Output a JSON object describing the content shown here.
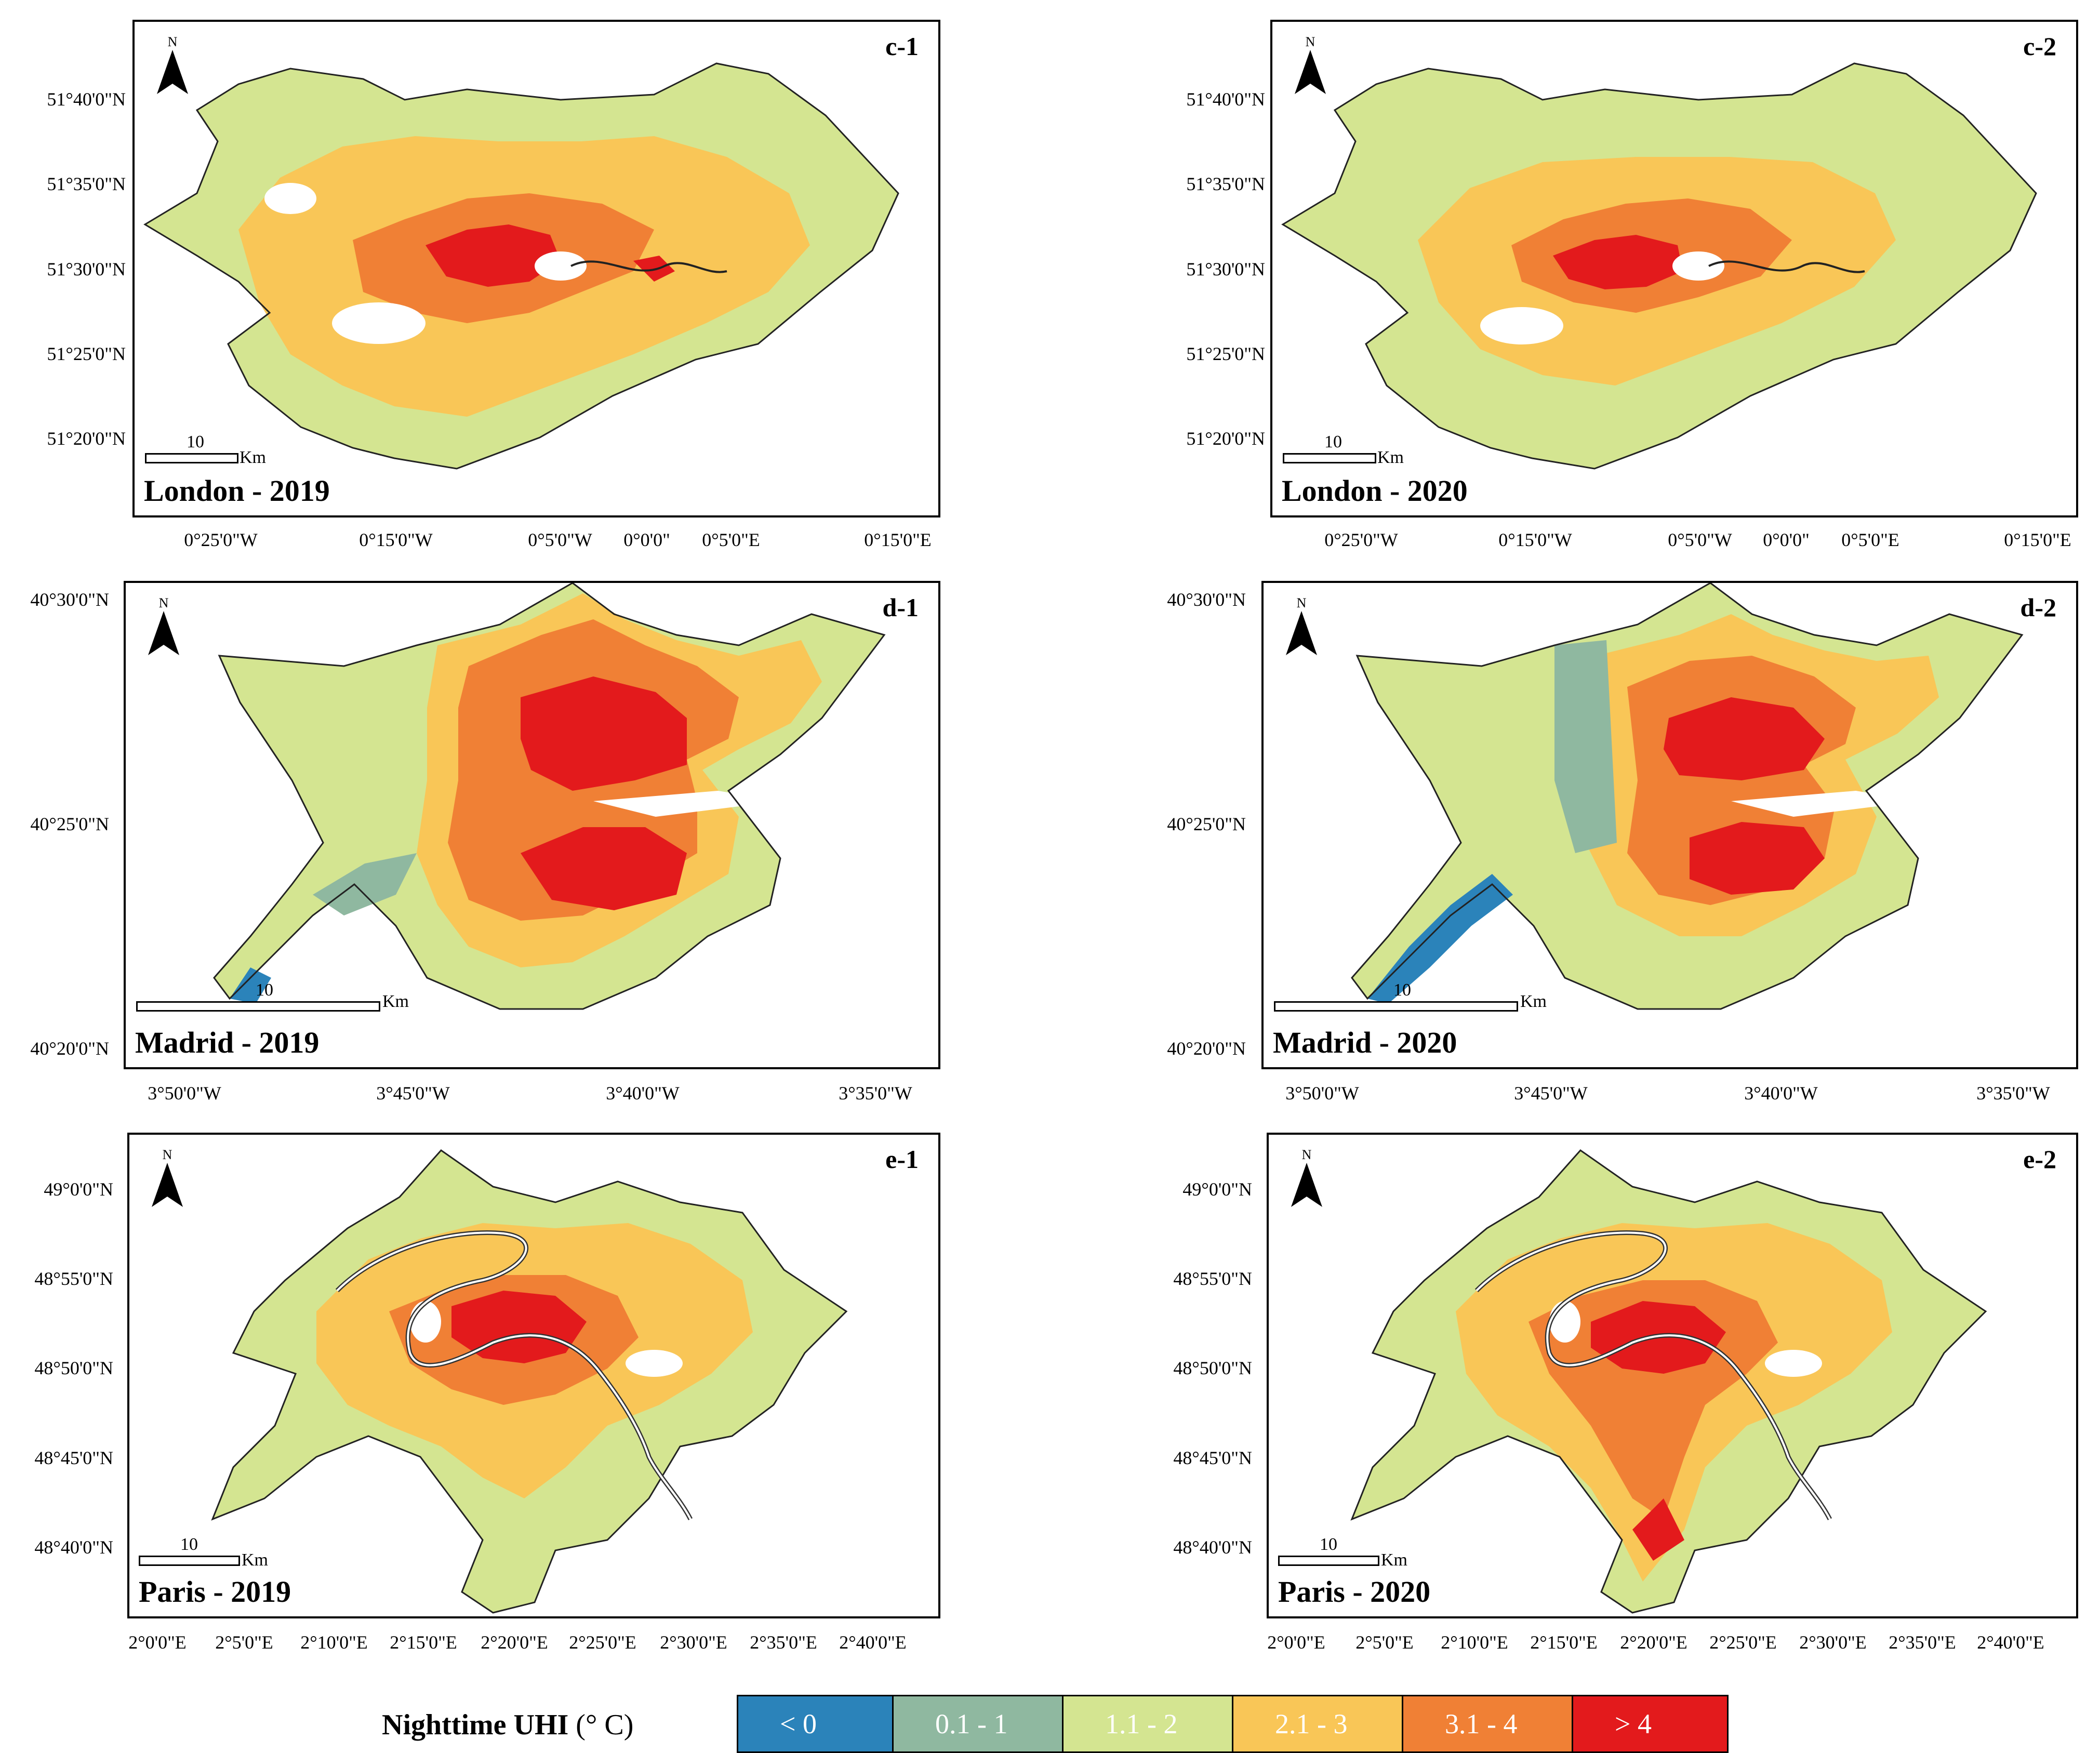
{
  "legend": {
    "title": "Nighttime UHI",
    "unit": "(° C)",
    "classes": [
      {
        "label": "< 0",
        "color": "#2b83ba"
      },
      {
        "label": "0.1 - 1",
        "color": "#8fb8a0"
      },
      {
        "label": "1.1 - 2",
        "color": "#d4e591"
      },
      {
        "label": "2.1 - 3",
        "color": "#f9c657"
      },
      {
        "label": "3.1 - 4",
        "color": "#f08035"
      },
      {
        "label": "> 4",
        "color": "#e31a1c"
      }
    ]
  },
  "north_label": "N",
  "scale_value": "10",
  "scale_unit": "Km",
  "panels": [
    {
      "id": "c-1",
      "title": "London - 2019"
    },
    {
      "id": "c-2",
      "title": "London - 2020"
    },
    {
      "id": "d-1",
      "title": "Madrid - 2019"
    },
    {
      "id": "d-2",
      "title": "Madrid - 2020"
    },
    {
      "id": "e-1",
      "title": "Paris - 2019"
    },
    {
      "id": "e-2",
      "title": "Paris - 2020"
    }
  ],
  "axes": {
    "london": {
      "lat": [
        "51°40'0\"N",
        "51°35'0\"N",
        "51°30'0\"N",
        "51°25'0\"N",
        "51°20'0\"N"
      ],
      "lon": [
        "0°25'0\"W",
        "0°15'0\"W",
        "0°5'0\"W",
        "0°0'0\"",
        "0°5'0\"E",
        "0°15'0\"E"
      ]
    },
    "madrid": {
      "lat": [
        "40°30'0\"N",
        "40°25'0\"N",
        "40°20'0\"N"
      ],
      "lon": [
        "3°50'0\"W",
        "3°45'0\"W",
        "3°40'0\"W",
        "3°35'0\"W"
      ]
    },
    "paris": {
      "lat": [
        "49°0'0\"N",
        "48°55'0\"N",
        "48°50'0\"N",
        "48°45'0\"N",
        "48°40'0\"N"
      ],
      "lon": [
        "2°0'0\"E",
        "2°5'0\"E",
        "2°10'0\"E",
        "2°15'0\"E",
        "2°20'0\"E",
        "2°25'0\"E",
        "2°30'0\"E",
        "2°35'0\"E",
        "2°40'0\"E"
      ]
    }
  }
}
